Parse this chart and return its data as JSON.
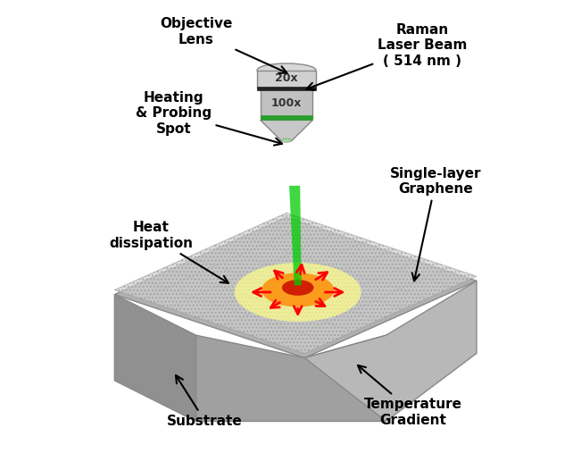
{
  "background_color": "#ffffff",
  "labels": {
    "objective_lens": "Objective\nLens",
    "raman": "Raman\nLaser Beam\n( 514 nm )",
    "heating": "Heating\n& Probing\nSpot",
    "single_layer": "Single-layer\nGraphene",
    "heat_dissipation": "Heat\ndissipation",
    "substrate": "Substrate",
    "temperature": "Temperature\nGradient",
    "obj_20x": "20x",
    "obj_100x": "100x"
  },
  "colors": {
    "substrate_top": "#b0b0b0",
    "substrate_side_left": "#909090",
    "substrate_side_front": "#a0a0a0",
    "graphene_top": "#c8c8c8",
    "graphene_pattern": "#aaaaaa",
    "lens_body_top": "#d0d0d0",
    "lens_body_bottom": "#c0c0c0",
    "lens_band": "#333333",
    "lens_green_band": "#2a9d2a",
    "laser_beam": "#00cc00",
    "heat_yellow": "#ffff00",
    "heat_orange": "#ff8800",
    "heat_red": "#cc2200",
    "arrow_color": "#000000",
    "text_color": "#000000"
  },
  "figsize": [
    6.42,
    5.07
  ],
  "dpi": 100
}
